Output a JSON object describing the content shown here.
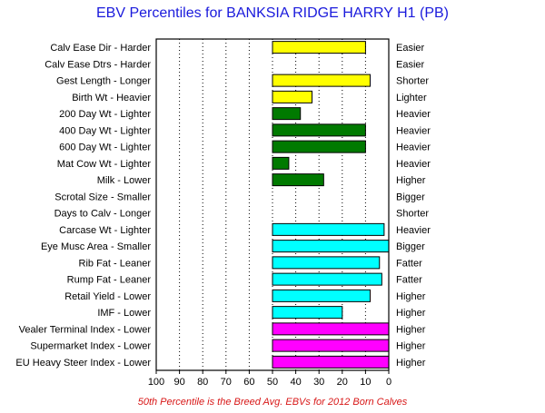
{
  "chart_data": {
    "type": "bar",
    "title": "EBV Percentiles for BANKSIA RIDGE HARRY H1 (PB)",
    "footnote": "50th Percentile is the Breed Avg. EBVs for 2012 Born Calves",
    "x_ticks": [
      "100",
      "90",
      "80",
      "70",
      "60",
      "50",
      "40",
      "30",
      "20",
      "10",
      "0"
    ],
    "xlim": [
      100,
      0
    ],
    "baseline": 50,
    "grid": true,
    "colors": {
      "yellow": "#ffff00",
      "green": "#007a00",
      "cyan": "#00ffff",
      "magenta": "#ff00ff"
    },
    "rows": [
      {
        "left": "Calv Ease Dir - Harder",
        "right": "Easier",
        "value": 10,
        "color": "yellow"
      },
      {
        "left": "Calv Ease Dtrs - Harder",
        "right": "Easier",
        "value": null,
        "color": "yellow"
      },
      {
        "left": "Gest Length - Longer",
        "right": "Shorter",
        "value": 8,
        "color": "yellow"
      },
      {
        "left": "Birth Wt - Heavier",
        "right": "Lighter",
        "value": 33,
        "color": "yellow"
      },
      {
        "left": "200 Day Wt - Lighter",
        "right": "Heavier",
        "value": 38,
        "color": "green"
      },
      {
        "left": "400 Day Wt - Lighter",
        "right": "Heavier",
        "value": 10,
        "color": "green"
      },
      {
        "left": "600 Day Wt - Lighter",
        "right": "Heavier",
        "value": 10,
        "color": "green"
      },
      {
        "left": "Mat Cow Wt - Lighter",
        "right": "Heavier",
        "value": 43,
        "color": "green"
      },
      {
        "left": "Milk - Lower",
        "right": "Higher",
        "value": 28,
        "color": "green"
      },
      {
        "left": "Scrotal Size - Smaller",
        "right": "Bigger",
        "value": null,
        "color": "green"
      },
      {
        "left": "Days to Calv - Longer",
        "right": "Shorter",
        "value": null,
        "color": "green"
      },
      {
        "left": "Carcase Wt - Lighter",
        "right": "Heavier",
        "value": 2,
        "color": "cyan"
      },
      {
        "left": "Eye Musc Area - Smaller",
        "right": "Bigger",
        "value": 0,
        "color": "cyan"
      },
      {
        "left": "Rib Fat - Leaner",
        "right": "Fatter",
        "value": 4,
        "color": "cyan"
      },
      {
        "left": "Rump Fat - Leaner",
        "right": "Fatter",
        "value": 3,
        "color": "cyan"
      },
      {
        "left": "Retail Yield - Lower",
        "right": "Higher",
        "value": 8,
        "color": "cyan"
      },
      {
        "left": "IMF - Lower",
        "right": "Higher",
        "value": 20,
        "color": "cyan"
      },
      {
        "left": "Vealer Terminal Index - Lower",
        "right": "Higher",
        "value": 0,
        "color": "magenta"
      },
      {
        "left": "Supermarket Index - Lower",
        "right": "Higher",
        "value": 0,
        "color": "magenta"
      },
      {
        "left": "EU Heavy Steer Index - Lower",
        "right": "Higher",
        "value": 0,
        "color": "magenta"
      }
    ]
  }
}
